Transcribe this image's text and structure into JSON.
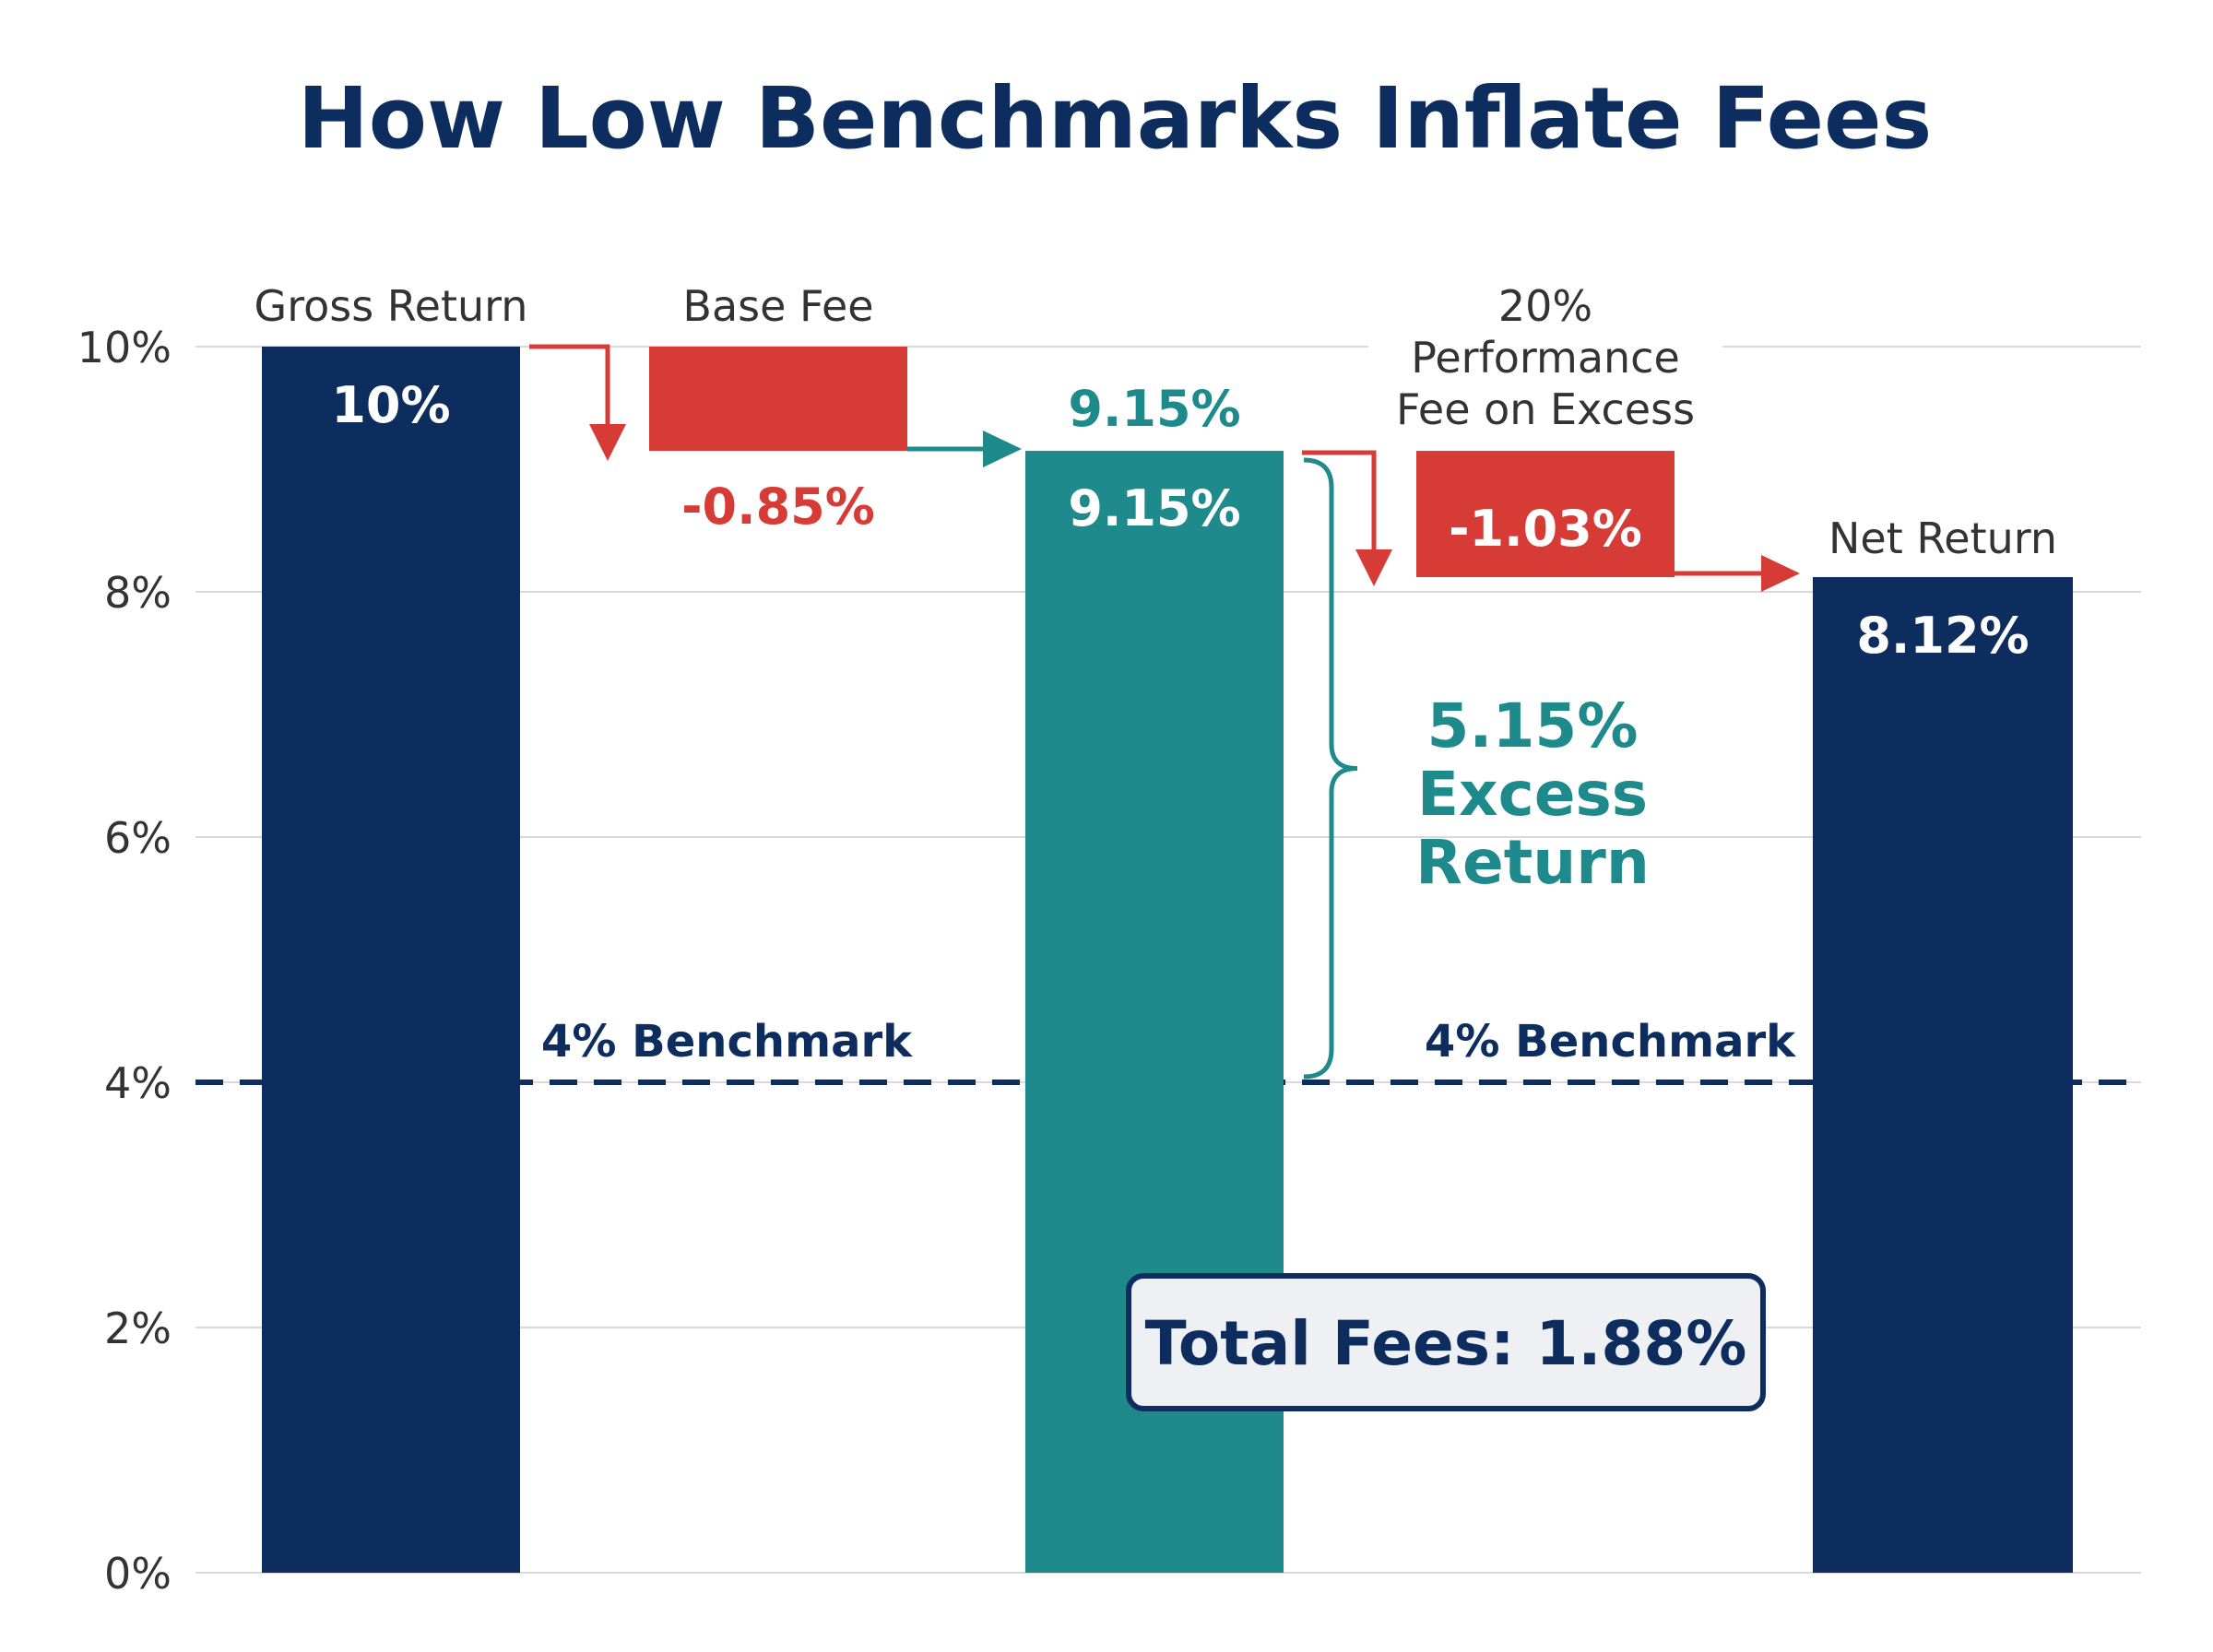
{
  "chart_data": {
    "type": "waterfall",
    "title": "How Low Benchmarks Inflate Fees",
    "ylim": [
      0,
      10
    ],
    "y_ticks": [
      {
        "value": 0,
        "label": "0%"
      },
      {
        "value": 2,
        "label": "2%"
      },
      {
        "value": 4,
        "label": "4%"
      },
      {
        "value": 6,
        "label": "6%"
      },
      {
        "value": 8,
        "label": "8%"
      },
      {
        "value": 10,
        "label": "10%"
      }
    ],
    "grid": true,
    "steps": [
      {
        "id": "gross",
        "kind": "total",
        "category": "Gross Return",
        "start": 0,
        "end": 10,
        "value_label": "10%"
      },
      {
        "id": "base_fee",
        "kind": "decrease",
        "category": "Base Fee",
        "start": 10,
        "end": 9.15,
        "value_label": "-0.85%"
      },
      {
        "id": "after_base",
        "kind": "subtotal",
        "category": "",
        "start": 0,
        "end": 9.15,
        "value_label": "9.15%",
        "top_label": "9.15%"
      },
      {
        "id": "perf_fee",
        "kind": "decrease",
        "category_lines": [
          "20%",
          "Performance",
          "Fee on Excess"
        ],
        "start": 9.15,
        "end": 8.12,
        "value_label": "-1.03%"
      },
      {
        "id": "net",
        "kind": "total",
        "category": "Net Return",
        "start": 0,
        "end": 8.12,
        "value_label": "8.12%"
      }
    ],
    "benchmark": {
      "value": 4,
      "labels": [
        "4% Benchmark",
        "4% Benchmark"
      ]
    },
    "excess_annotation": {
      "from": 4,
      "to": 9.15,
      "lines": [
        "5.15%",
        "Excess",
        "Return"
      ]
    },
    "total_box": {
      "text": "Total Fees: 1.88%"
    },
    "colors": {
      "navy": "#0d2d5e",
      "teal": "#1f8a8c",
      "red": "#d63b36",
      "grid": "#d9d9d9",
      "text": "#333333",
      "box_bg": "#eef0f4"
    }
  }
}
